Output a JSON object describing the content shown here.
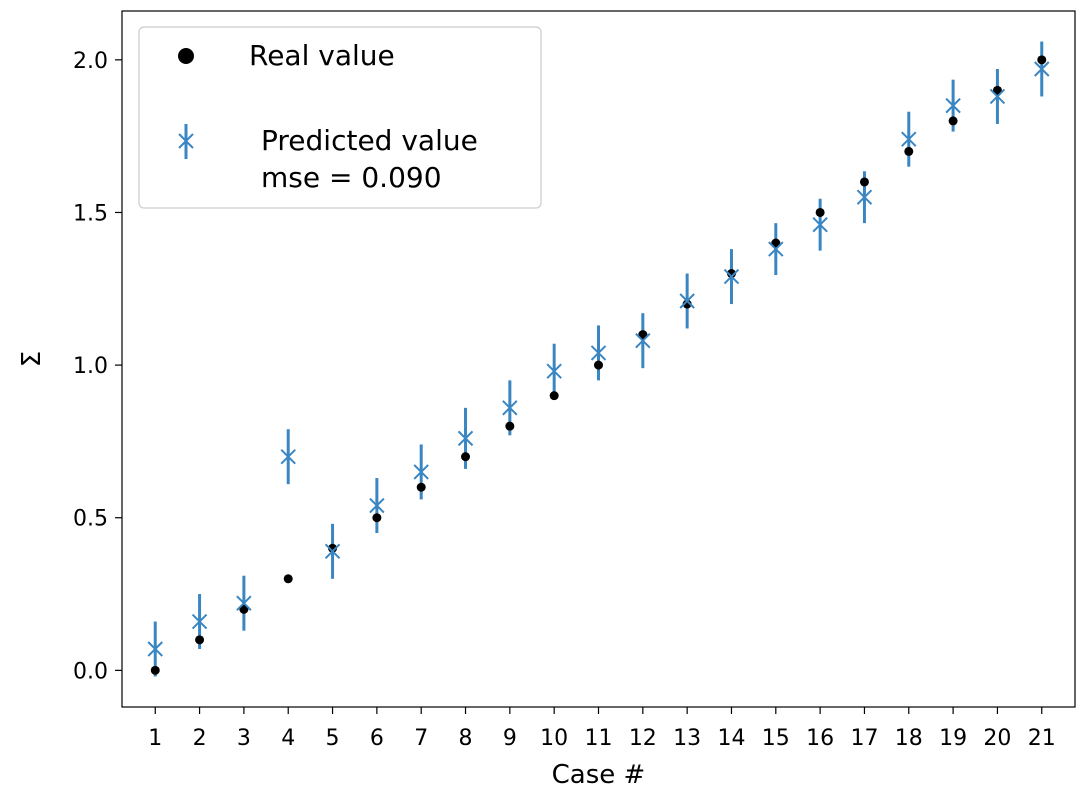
{
  "chart_data": {
    "type": "scatter",
    "title": "",
    "xlabel": "Case #",
    "ylabel": "Σ",
    "xlim": [
      0.25,
      21.75
    ],
    "ylim": [
      -0.12,
      2.16
    ],
    "x_ticks": [
      1,
      2,
      3,
      4,
      5,
      6,
      7,
      8,
      9,
      10,
      11,
      12,
      13,
      14,
      15,
      16,
      17,
      18,
      19,
      20,
      21
    ],
    "x_tick_labels": [
      "1",
      "2",
      "3",
      "4",
      "5",
      "6",
      "7",
      "8",
      "9",
      "10",
      "11",
      "12",
      "13",
      "14",
      "15",
      "16",
      "17",
      "18",
      "19",
      "20",
      "21"
    ],
    "y_ticks": [
      0.0,
      0.5,
      1.0,
      1.5,
      2.0
    ],
    "y_tick_labels": [
      "0.0",
      "0.5",
      "1.0",
      "1.5",
      "2.0"
    ],
    "grid": false,
    "legend_position": "top-left",
    "series": [
      {
        "name": "Real value",
        "marker": "dot",
        "color": "#000000",
        "x": [
          1,
          2,
          3,
          4,
          5,
          6,
          7,
          8,
          9,
          10,
          11,
          12,
          13,
          14,
          15,
          16,
          17,
          18,
          19,
          20,
          21
        ],
        "y": [
          0.0,
          0.1,
          0.2,
          0.3,
          0.4,
          0.5,
          0.6,
          0.7,
          0.8,
          0.9,
          1.0,
          1.1,
          1.2,
          1.3,
          1.4,
          1.5,
          1.6,
          1.7,
          1.8,
          1.9,
          2.0
        ]
      },
      {
        "name": "Predicted value",
        "legend_note": "mse = 0.090",
        "marker": "x",
        "color": "#3a86c3",
        "x": [
          1,
          2,
          3,
          4,
          5,
          6,
          7,
          8,
          9,
          10,
          11,
          12,
          13,
          14,
          15,
          16,
          17,
          18,
          19,
          20,
          21
        ],
        "y": [
          0.07,
          0.16,
          0.22,
          0.7,
          0.39,
          0.54,
          0.65,
          0.76,
          0.86,
          0.98,
          1.04,
          1.08,
          1.21,
          1.29,
          1.38,
          1.46,
          1.55,
          1.74,
          1.85,
          1.88,
          1.97
        ],
        "error": [
          0.09,
          0.09,
          0.09,
          0.09,
          0.09,
          0.09,
          0.09,
          0.1,
          0.09,
          0.09,
          0.09,
          0.09,
          0.09,
          0.09,
          0.085,
          0.085,
          0.085,
          0.09,
          0.085,
          0.09,
          0.09
        ]
      }
    ]
  }
}
